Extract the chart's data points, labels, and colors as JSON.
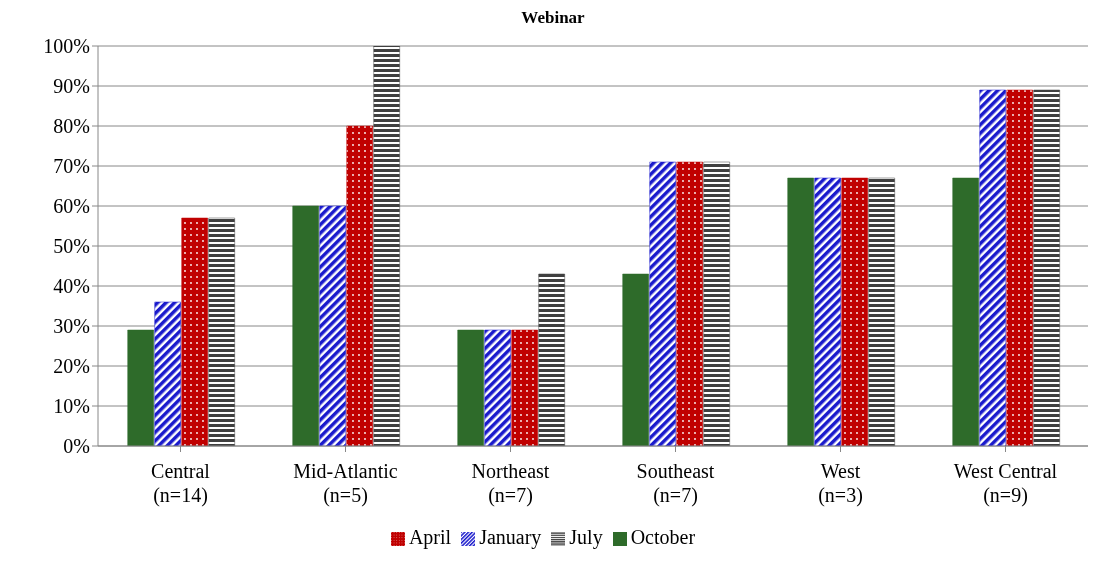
{
  "chart_data": {
    "type": "bar",
    "title": "Webinar",
    "categories": [
      "Central\n(n=14)",
      "Mid-Atlantic\n(n=5)",
      "Northeast\n(n=7)",
      "Southeast\n(n=7)",
      "West\n(n=3)",
      "West Central\n(n=9)"
    ],
    "series": [
      {
        "name": "October",
        "color": "#2e6b2a",
        "values": [
          29,
          60,
          29,
          43,
          67,
          67
        ]
      },
      {
        "name": "January",
        "color": "#1a1acc",
        "values": [
          36,
          60,
          29,
          71,
          67,
          89
        ]
      },
      {
        "name": "April",
        "color": "#c00000",
        "values": [
          57,
          80,
          29,
          71,
          67,
          89
        ]
      },
      {
        "name": "July",
        "color": "#404040",
        "values": [
          57,
          100,
          43,
          71,
          67,
          89
        ]
      }
    ],
    "ylim": [
      0,
      100
    ],
    "yticks": [
      {
        "value": 0,
        "label": "0%"
      },
      {
        "value": 10,
        "label": "10%"
      },
      {
        "value": 20,
        "label": "20%"
      },
      {
        "value": 30,
        "label": "30%"
      },
      {
        "value": 40,
        "label": "40%"
      },
      {
        "value": 50,
        "label": "50%"
      },
      {
        "value": 60,
        "label": "60%"
      },
      {
        "value": 70,
        "label": "70%"
      },
      {
        "value": 80,
        "label": "80%"
      },
      {
        "value": 90,
        "label": "90%"
      },
      {
        "value": 100,
        "label": "100%"
      }
    ],
    "grid": "y",
    "legend": "bottom"
  }
}
